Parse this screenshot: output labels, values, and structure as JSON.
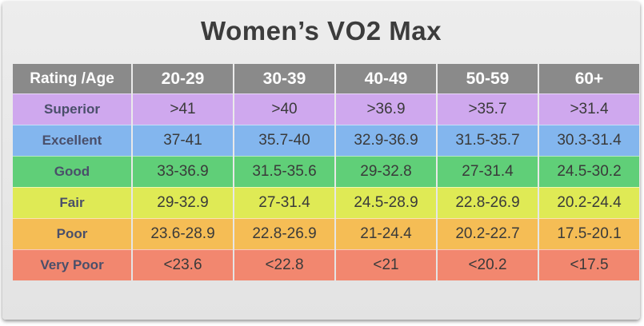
{
  "title": "Women’s VO2 Max",
  "header": [
    "Rating /Age",
    "20-29",
    "30-39",
    "40-49",
    "50-59",
    "60+"
  ],
  "rows": [
    {
      "label": "Superior",
      "color": "#cfa8ee",
      "values": [
        ">41",
        ">40",
        ">36.9",
        ">35.7",
        ">31.4"
      ]
    },
    {
      "label": "Excellent",
      "color": "#83b6ee",
      "values": [
        "37-41",
        "35.7-40",
        "32.9-36.9",
        "31.5-35.7",
        "30.3-31.4"
      ]
    },
    {
      "label": "Good",
      "color": "#60cf78",
      "values": [
        "33-36.9",
        "31.5-35.6",
        "29-32.8",
        "27-31.4",
        "24.5-30.2"
      ]
    },
    {
      "label": "Fair",
      "color": "#dfea55",
      "values": [
        "29-32.9",
        "27-31.4",
        "24.5-28.9",
        "22.8-26.9",
        "20.2-24.4"
      ]
    },
    {
      "label": "Poor",
      "color": "#f5bd55",
      "values": [
        "23.6-28.9",
        "22.8-26.9",
        "21-24.4",
        "20.2-22.7",
        "17.5-20.1"
      ]
    },
    {
      "label": "Very Poor",
      "color": "#f2876f",
      "values": [
        "<23.6",
        "<22.8",
        "<21",
        "<20.2",
        "<17.5"
      ]
    }
  ]
}
